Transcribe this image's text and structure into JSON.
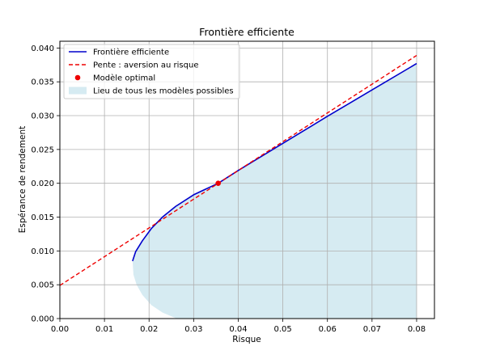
{
  "chart_data": {
    "type": "line",
    "title": "Frontière efficiente",
    "xlabel": "Risque",
    "ylabel": "Espérance de rendement",
    "xlim": [
      0.0,
      0.084
    ],
    "ylim": [
      0.0,
      0.041
    ],
    "xticks": [
      "0.00",
      "0.01",
      "0.02",
      "0.03",
      "0.04",
      "0.05",
      "0.06",
      "0.07",
      "0.08"
    ],
    "yticks": [
      "0.000",
      "0.005",
      "0.010",
      "0.015",
      "0.020",
      "0.025",
      "0.030",
      "0.035",
      "0.040"
    ],
    "grid": true,
    "legend_position": "upper-left",
    "legend": [
      {
        "label": "Frontière efficiente",
        "kind": "line",
        "color": "#0000cc"
      },
      {
        "label": "Pente : aversion au risque",
        "kind": "dashed",
        "color": "#ee0000"
      },
      {
        "label": "Modèle optimal",
        "kind": "point",
        "color": "#ee0000"
      },
      {
        "label": "Lieu de tous les modèles possibles",
        "kind": "area",
        "color": "#add8e6"
      }
    ],
    "frontier": {
      "name": "Frontière efficiente",
      "color": "#0000cc",
      "x": [
        0.0163,
        0.017,
        0.0185,
        0.0205,
        0.023,
        0.026,
        0.03,
        0.0355,
        0.04,
        0.05,
        0.06,
        0.07,
        0.08
      ],
      "y": [
        0.0085,
        0.0099,
        0.0115,
        0.0133,
        0.015,
        0.0166,
        0.0183,
        0.02,
        0.0219,
        0.0259,
        0.0299,
        0.0338,
        0.0377
      ]
    },
    "tangent_line": {
      "name": "Pente : aversion au risque",
      "color": "#ee0000",
      "x": [
        0.0,
        0.08
      ],
      "y": [
        0.0049,
        0.0389
      ]
    },
    "optimal_point": {
      "name": "Modèle optimal",
      "color": "#ee0000",
      "x": 0.0355,
      "y": 0.02
    },
    "feasible_region": {
      "name": "Lieu de tous les modèles possibles",
      "color": "#add8e6",
      "lower_x": [
        0.0163,
        0.0165,
        0.0172,
        0.0185,
        0.0205,
        0.023,
        0.0262
      ],
      "lower_y": [
        0.0085,
        0.0065,
        0.005,
        0.0035,
        0.002,
        0.0009,
        0.0
      ]
    }
  }
}
